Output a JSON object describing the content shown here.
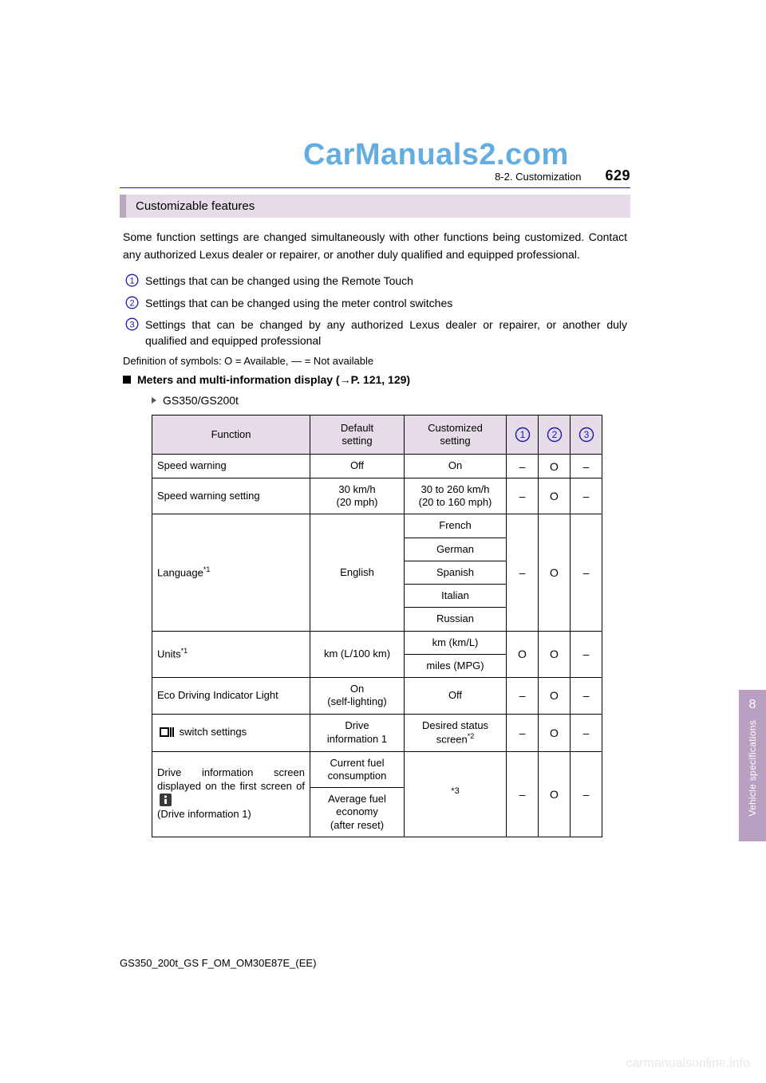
{
  "watermark_top": "CarManuals2.com",
  "watermark_bottom": "carmanualsonline.info",
  "header": {
    "section": "8-2. Customization",
    "page_number": "629"
  },
  "section_title": "Customizable features",
  "intro": "Some function settings are changed simultaneously with other functions being customized. Contact any authorized Lexus dealer or repairer, or another duly qualified and equipped professional.",
  "legend": {
    "items": [
      "Settings that can be changed using the Remote Touch",
      "Settings that can be changed using the meter control switches",
      "Settings that can be changed by any authorized Lexus dealer or repairer, or another duly qualified and equipped professional"
    ],
    "circle_color": "#1a1aa8"
  },
  "symbol_def": "Definition of symbols: O = Available, — = Not available",
  "subheading_prefix": "Meters and multi-information display (",
  "subheading_ref": "→P. 121, 129",
  "subheading_suffix": ")",
  "model_label": "GS350/GS200t",
  "table": {
    "headers": {
      "function": "Function",
      "default": "Default setting",
      "custom": "Customized setting"
    },
    "header_bg": "#e6dce8",
    "rows": [
      {
        "fn_plain": "Speed warning",
        "default_lines": [
          "Off"
        ],
        "custom_lines": [
          [
            "On"
          ]
        ],
        "cols": [
          "–",
          "O",
          "–"
        ]
      },
      {
        "fn_plain": "Speed warning setting",
        "default_lines": [
          "30 km/h",
          "(20 mph)"
        ],
        "custom_lines": [
          [
            "30 to 260 km/h",
            "(20 to 160 mph)"
          ]
        ],
        "cols": [
          "–",
          "O",
          "–"
        ]
      },
      {
        "fn_label": "Language",
        "fn_sup": "*1",
        "default_lines": [
          "English"
        ],
        "custom_lines": [
          [
            "French"
          ],
          [
            "German"
          ],
          [
            "Spanish"
          ],
          [
            "Italian"
          ],
          [
            "Russian"
          ]
        ],
        "cols": [
          "–",
          "O",
          "–"
        ]
      },
      {
        "fn_label": "Units",
        "fn_sup": "*1",
        "default_lines": [
          "km (L/100 km)"
        ],
        "custom_lines": [
          [
            "km (km/L)"
          ],
          [
            "miles (MPG)"
          ]
        ],
        "cols": [
          "O",
          "O",
          "–"
        ]
      },
      {
        "fn_plain": "Eco Driving Indicator Light",
        "default_lines": [
          "On",
          "(self-lighting)"
        ],
        "custom_lines": [
          [
            "Off"
          ]
        ],
        "cols": [
          "–",
          "O",
          "–"
        ]
      },
      {
        "fn_icon": "book-icon",
        "fn_after_icon": " switch settings",
        "default_lines": [
          "Drive",
          "information 1"
        ],
        "custom_lines": [
          [
            "Desired status",
            "screen*2"
          ]
        ],
        "custom_has_sup": true,
        "custom_sup_base": "screen",
        "custom_sup": "*2",
        "cols": [
          "–",
          "O",
          "–"
        ]
      },
      {
        "fn_multiline_pre": "Drive information screen displayed on the first screen of ",
        "fn_icon2": "info-icon",
        "fn_multiline_post": " (Drive information 1)",
        "default_groups": [
          [
            "Current fuel",
            "consumption"
          ],
          [
            "Average fuel",
            "economy",
            "(after reset)"
          ]
        ],
        "custom_lines_single": "*3",
        "cols": [
          "–",
          "O",
          "–"
        ]
      }
    ]
  },
  "footer_id": "GS350_200t_GS F_OM_OM30E87E_(EE)",
  "side_tab": {
    "chapter": "8",
    "label": "Vehicle specifications",
    "bg": "#b99fc1"
  }
}
